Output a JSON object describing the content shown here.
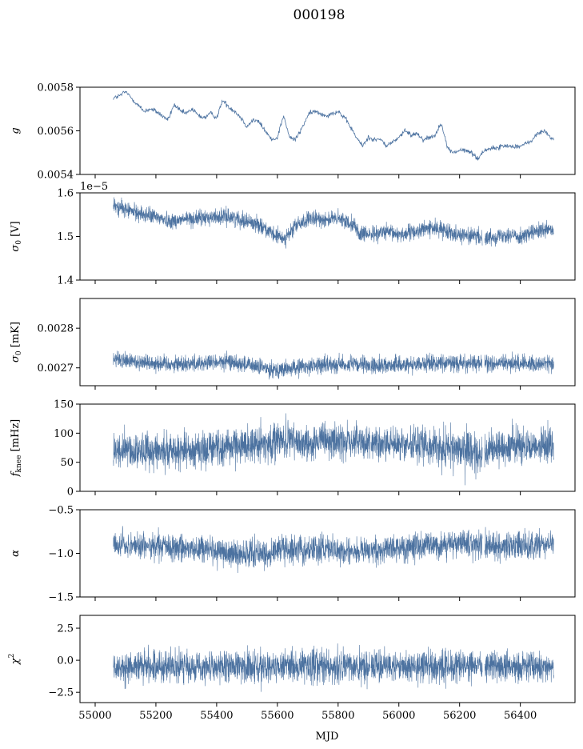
{
  "figure": {
    "title": "000198",
    "xlabel": "MJD"
  },
  "colors": {
    "series": "#4c72a0",
    "axes": "#000000",
    "background": "#ffffff"
  },
  "chart_data": [
    {
      "type": "line",
      "ylabel": "g",
      "ylim": [
        0.0054,
        0.0058
      ],
      "yticks": [
        0.0054,
        0.0056,
        0.0058
      ],
      "yticklabels": [
        "0.0054",
        "0.0056",
        "0.0058"
      ],
      "xlim": [
        54950,
        56580
      ],
      "x_range": [
        55060,
        56510
      ],
      "noise": 8e-06,
      "x": [
        55060,
        55080,
        55100,
        55120,
        55140,
        55160,
        55180,
        55200,
        55220,
        55240,
        55260,
        55280,
        55300,
        55320,
        55340,
        55360,
        55380,
        55400,
        55420,
        55440,
        55460,
        55480,
        55500,
        55520,
        55540,
        55560,
        55580,
        55600,
        55620,
        55640,
        55660,
        55680,
        55700,
        55720,
        55740,
        55760,
        55780,
        55800,
        55820,
        55840,
        55860,
        55880,
        55900,
        55920,
        55940,
        55960,
        55980,
        56000,
        56020,
        56040,
        56060,
        56080,
        56100,
        56120,
        56140,
        56160,
        56180,
        56200,
        56220,
        56240,
        56260,
        56280,
        56300,
        56320,
        56340,
        56360,
        56380,
        56400,
        56420,
        56440,
        56460,
        56480,
        56500,
        56510
      ],
      "y": [
        0.00575,
        0.00576,
        0.00578,
        0.00575,
        0.00572,
        0.00569,
        0.0057,
        0.00569,
        0.00567,
        0.00565,
        0.00572,
        0.00569,
        0.00568,
        0.0057,
        0.00567,
        0.00566,
        0.00568,
        0.00566,
        0.00574,
        0.00571,
        0.00569,
        0.00566,
        0.00562,
        0.00565,
        0.00564,
        0.0056,
        0.00556,
        0.00557,
        0.00567,
        0.00557,
        0.00556,
        0.00561,
        0.00567,
        0.00569,
        0.00568,
        0.00567,
        0.00568,
        0.00569,
        0.00566,
        0.00562,
        0.00557,
        0.00553,
        0.00557,
        0.00556,
        0.00556,
        0.00553,
        0.00555,
        0.00557,
        0.0056,
        0.00558,
        0.00559,
        0.00556,
        0.00557,
        0.00558,
        0.00564,
        0.00552,
        0.0055,
        0.00551,
        0.00551,
        0.0055,
        0.00547,
        0.00551,
        0.00552,
        0.00552,
        0.00553,
        0.00553,
        0.00553,
        0.00553,
        0.00554,
        0.00556,
        0.00559,
        0.0056,
        0.00557,
        0.00556
      ]
    },
    {
      "type": "line",
      "ylabel": "σ₀ [V]",
      "offset_text": "1e−5",
      "ylim": [
        1.4,
        1.6
      ],
      "yticks": [
        1.4,
        1.5,
        1.6
      ],
      "yticklabels": [
        "1.4",
        "1.5",
        "1.6"
      ],
      "xlim": [
        54950,
        56580
      ],
      "x_range": [
        55060,
        56510
      ],
      "noise": 0.013,
      "x": [
        55060,
        55100,
        55150,
        55200,
        55250,
        55300,
        55350,
        55400,
        55450,
        55500,
        55550,
        55580,
        55600,
        55620,
        55640,
        55660,
        55700,
        55750,
        55800,
        55850,
        55870,
        55900,
        55950,
        56000,
        56050,
        56100,
        56150,
        56200,
        56250,
        56280,
        56300,
        56350,
        56400,
        56450,
        56500,
        56510
      ],
      "y": [
        1.57,
        1.562,
        1.552,
        1.545,
        1.535,
        1.54,
        1.542,
        1.545,
        1.545,
        1.535,
        1.525,
        1.505,
        1.5,
        1.495,
        1.505,
        1.525,
        1.538,
        1.54,
        1.54,
        1.53,
        1.505,
        1.505,
        1.51,
        1.505,
        1.51,
        1.52,
        1.515,
        1.505,
        1.5,
        1.495,
        1.498,
        1.505,
        1.5,
        1.51,
        1.515,
        1.51
      ]
    },
    {
      "type": "line",
      "ylabel": "σ₀ [mK]",
      "ylim": [
        0.002655,
        0.002875
      ],
      "yticks": [
        0.0027,
        0.0028
      ],
      "yticklabels": [
        "0.0027",
        "0.0028"
      ],
      "xlim": [
        54950,
        56580
      ],
      "x_range": [
        55060,
        56510
      ],
      "noise": 1.5e-05,
      "x": [
        55060,
        55150,
        55250,
        55350,
        55450,
        55550,
        55620,
        55700,
        55800,
        55900,
        56000,
        56100,
        56200,
        56300,
        56400,
        56510
      ],
      "y": [
        0.00272,
        0.002715,
        0.00271,
        0.002712,
        0.002715,
        0.0027,
        0.002695,
        0.002705,
        0.00271,
        0.002705,
        0.002708,
        0.002712,
        0.002712,
        0.00271,
        0.002712,
        0.00271
      ]
    },
    {
      "type": "line",
      "ylabel": "f_knee [mHz]",
      "ylim": [
        0,
        150
      ],
      "yticks": [
        0,
        50,
        100,
        150
      ],
      "yticklabels": [
        "0",
        "50",
        "100",
        "150"
      ],
      "xlim": [
        54950,
        56580
      ],
      "x_range": [
        55060,
        56510
      ],
      "noise": 22,
      "x": [
        55060,
        55200,
        55350,
        55450,
        55550,
        55620,
        55700,
        55800,
        55900,
        56000,
        56100,
        56200,
        56280,
        56300,
        56400,
        56510
      ],
      "y": [
        70,
        70,
        72,
        78,
        82,
        88,
        84,
        86,
        82,
        80,
        80,
        70,
        60,
        75,
        80,
        78
      ]
    },
    {
      "type": "line",
      "ylabel": "α",
      "ylim": [
        -1.5,
        -0.5
      ],
      "yticks": [
        -1.5,
        -1.0,
        -0.5
      ],
      "yticklabels": [
        "−1.5",
        "−1.0",
        "−0.5"
      ],
      "xlim": [
        54950,
        56580
      ],
      "x_range": [
        55060,
        56510
      ],
      "noise": 0.11,
      "x": [
        55060,
        55200,
        55350,
        55450,
        55550,
        55650,
        55750,
        55850,
        55950,
        56050,
        56150,
        56250,
        56350,
        56450,
        56510
      ],
      "y": [
        -0.9,
        -0.92,
        -0.95,
        -1.0,
        -1.0,
        -0.95,
        -0.95,
        -0.98,
        -0.95,
        -0.92,
        -0.9,
        -0.9,
        -0.92,
        -0.92,
        -0.9
      ]
    },
    {
      "type": "line",
      "ylabel": "χ²",
      "ylim": [
        -3.3,
        3.5
      ],
      "yticks": [
        -2.5,
        0.0,
        2.5
      ],
      "yticklabels": [
        "−2.5",
        "0.0",
        "2.5"
      ],
      "xlim": [
        54950,
        56580
      ],
      "x_range": [
        55060,
        56510
      ],
      "noise": 0.9,
      "x": [
        55060,
        56510
      ],
      "y": [
        -0.5,
        -0.5
      ]
    }
  ],
  "xticks": [
    55000,
    55200,
    55400,
    55600,
    55800,
    56000,
    56200,
    56400
  ],
  "xticklabels": [
    "55000",
    "55200",
    "55400",
    "55600",
    "55800",
    "56000",
    "56200",
    "56400"
  ]
}
